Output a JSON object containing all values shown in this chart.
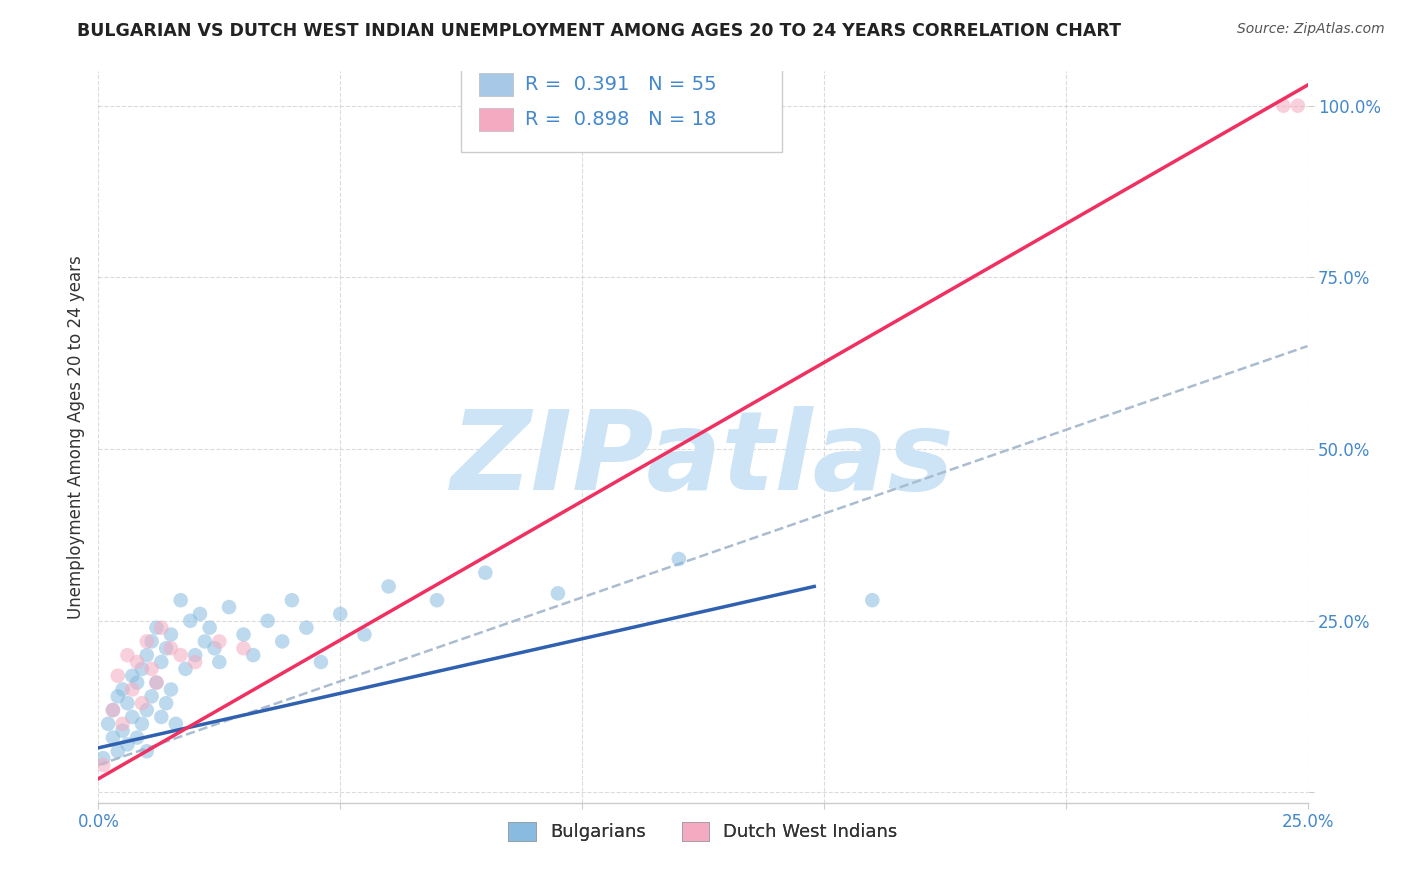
{
  "title": "BULGARIAN VS DUTCH WEST INDIAN UNEMPLOYMENT AMONG AGES 20 TO 24 YEARS CORRELATION CHART",
  "source": "Source: ZipAtlas.com",
  "ylabel": "Unemployment Among Ages 20 to 24 years",
  "xlim": [
    0.0,
    0.25
  ],
  "ylim": [
    -0.015,
    1.05
  ],
  "xticks": [
    0.0,
    0.05,
    0.1,
    0.15,
    0.2,
    0.25
  ],
  "xtick_labels": [
    "0.0%",
    "",
    "",
    "",
    "",
    "25.0%"
  ],
  "yticks": [
    0.0,
    0.25,
    0.5,
    0.75,
    1.0
  ],
  "ytick_labels": [
    "",
    "25.0%",
    "50.0%",
    "75.0%",
    "100.0%"
  ],
  "legend_entries": [
    {
      "label": "R =  0.391   N = 55",
      "color": "#a8c8e8"
    },
    {
      "label": "R =  0.898   N = 18",
      "color": "#f4aac0"
    }
  ],
  "bg_color": "#ffffff",
  "grid_color": "#cccccc",
  "watermark": "ZIPatlas",
  "watermark_color": "#cce4f5",
  "blue_scatter_color": "#88bbdf",
  "pink_scatter_color": "#f4aac0",
  "blue_line_color": "#3060b0",
  "pink_line_color": "#f03060",
  "dashed_line_color": "#aabdd0",
  "bulgarians_x": [
    0.001,
    0.002,
    0.003,
    0.003,
    0.004,
    0.004,
    0.005,
    0.005,
    0.006,
    0.006,
    0.007,
    0.007,
    0.008,
    0.008,
    0.009,
    0.009,
    0.01,
    0.01,
    0.01,
    0.011,
    0.011,
    0.012,
    0.012,
    0.013,
    0.013,
    0.014,
    0.014,
    0.015,
    0.015,
    0.016,
    0.017,
    0.018,
    0.019,
    0.02,
    0.021,
    0.022,
    0.023,
    0.024,
    0.025,
    0.027,
    0.03,
    0.032,
    0.035,
    0.038,
    0.04,
    0.043,
    0.046,
    0.05,
    0.055,
    0.06,
    0.07,
    0.08,
    0.095,
    0.12,
    0.16
  ],
  "bulgarians_y": [
    0.05,
    0.1,
    0.08,
    0.12,
    0.06,
    0.14,
    0.09,
    0.15,
    0.07,
    0.13,
    0.11,
    0.17,
    0.08,
    0.16,
    0.1,
    0.18,
    0.12,
    0.2,
    0.06,
    0.14,
    0.22,
    0.16,
    0.24,
    0.11,
    0.19,
    0.13,
    0.21,
    0.15,
    0.23,
    0.1,
    0.28,
    0.18,
    0.25,
    0.2,
    0.26,
    0.22,
    0.24,
    0.21,
    0.19,
    0.27,
    0.23,
    0.2,
    0.25,
    0.22,
    0.28,
    0.24,
    0.19,
    0.26,
    0.23,
    0.3,
    0.28,
    0.32,
    0.29,
    0.34,
    0.28
  ],
  "dutch_x": [
    0.001,
    0.003,
    0.004,
    0.005,
    0.006,
    0.007,
    0.008,
    0.009,
    0.01,
    0.011,
    0.012,
    0.013,
    0.015,
    0.017,
    0.02,
    0.025,
    0.03,
    0.248
  ],
  "dutch_y": [
    0.04,
    0.12,
    0.17,
    0.1,
    0.2,
    0.15,
    0.19,
    0.13,
    0.22,
    0.18,
    0.16,
    0.24,
    0.21,
    0.2,
    0.19,
    0.22,
    0.21,
    1.0
  ],
  "blue_line_x": [
    0.0,
    0.148
  ],
  "blue_line_y": [
    0.065,
    0.3
  ],
  "pink_line_x": [
    0.0,
    0.25
  ],
  "pink_line_y": [
    0.02,
    1.03
  ],
  "dashed_line_x": [
    0.0,
    0.25
  ],
  "dashed_line_y": [
    0.04,
    0.65
  ]
}
